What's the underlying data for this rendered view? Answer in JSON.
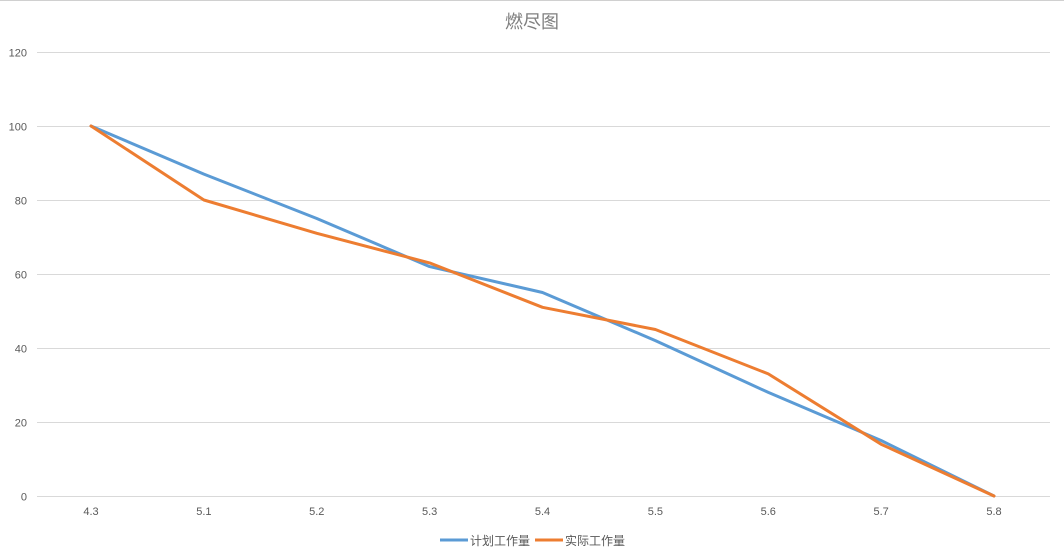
{
  "chart_data": {
    "type": "line",
    "title": "燃尽图",
    "categories": [
      "4.3",
      "5.1",
      "5.2",
      "5.3",
      "5.4",
      "5.5",
      "5.6",
      "5.7",
      "5.8"
    ],
    "series": [
      {
        "name": "计划工作量",
        "color": "#5b9bd5",
        "values": [
          100,
          87,
          75,
          62,
          55,
          42,
          28,
          15,
          0
        ]
      },
      {
        "name": "实际工作量",
        "color": "#ed7d31",
        "values": [
          100,
          80,
          71,
          63,
          51,
          45,
          33,
          14,
          0
        ]
      }
    ],
    "ylim": [
      0,
      120
    ],
    "yticks": [
      0,
      20,
      40,
      60,
      80,
      100,
      120
    ],
    "grid": true,
    "legend": "bottom"
  }
}
